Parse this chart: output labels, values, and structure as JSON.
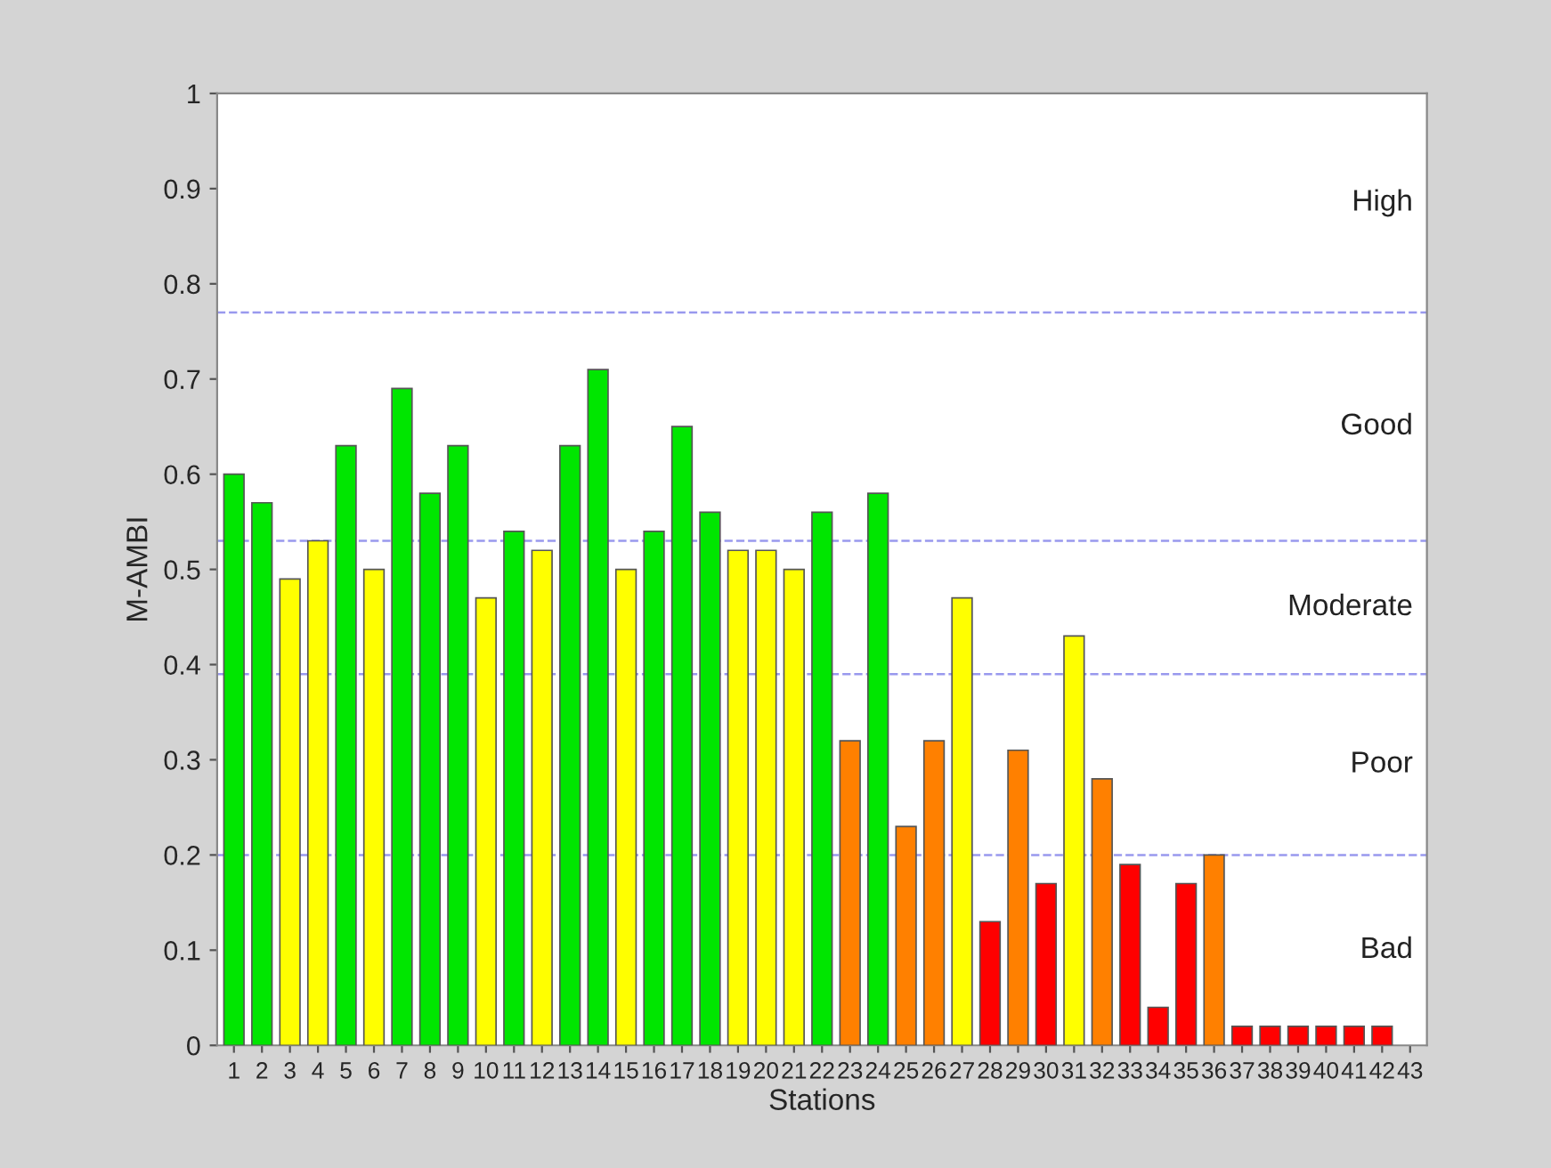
{
  "chart_data": {
    "type": "bar",
    "xlabel": "Stations",
    "ylabel": "M-AMBI",
    "categories": [
      "1",
      "2",
      "3",
      "4",
      "5",
      "6",
      "7",
      "8",
      "9",
      "10",
      "11",
      "12",
      "13",
      "14",
      "15",
      "16",
      "17",
      "18",
      "19",
      "20",
      "21",
      "22",
      "23",
      "24",
      "25",
      "26",
      "27",
      "28",
      "29",
      "30",
      "31",
      "32",
      "33",
      "34",
      "35",
      "36",
      "37",
      "38",
      "39",
      "40",
      "41",
      "42",
      "43"
    ],
    "values": [
      0.6,
      0.57,
      0.49,
      0.53,
      0.63,
      0.5,
      0.69,
      0.58,
      0.63,
      0.47,
      0.54,
      0.52,
      0.63,
      0.71,
      0.5,
      0.54,
      0.65,
      0.56,
      0.52,
      0.52,
      0.5,
      0.56,
      0.32,
      0.58,
      0.23,
      0.32,
      0.47,
      0.13,
      0.31,
      0.17,
      0.43,
      0.28,
      0.19,
      0.04,
      0.17,
      0.2,
      0.02,
      0.02,
      0.02,
      0.02,
      0.02,
      0.02,
      null
    ],
    "colors": [
      "#00e600",
      "#00e600",
      "#ffff00",
      "#ffff00",
      "#00e600",
      "#ffff00",
      "#00e600",
      "#00e600",
      "#00e600",
      "#ffff00",
      "#00e600",
      "#ffff00",
      "#00e600",
      "#00e600",
      "#ffff00",
      "#00e600",
      "#00e600",
      "#00e600",
      "#ffff00",
      "#ffff00",
      "#ffff00",
      "#00e600",
      "#ff8000",
      "#00e600",
      "#ff8000",
      "#ff8000",
      "#ffff00",
      "#ff0000",
      "#ff8000",
      "#ff0000",
      "#ffff00",
      "#ff8000",
      "#ff0000",
      "#ff0000",
      "#ff0000",
      "#ff8000",
      "#ff0000",
      "#ff0000",
      "#ff0000",
      "#ff0000",
      "#ff0000",
      "#ff0000",
      "#ff0000"
    ],
    "ylim": [
      0,
      1
    ],
    "yticks": [
      0,
      0.1,
      0.2,
      0.3,
      0.4,
      0.5,
      0.6,
      0.7,
      0.8,
      0.9,
      1
    ],
    "ref_lines": [
      {
        "axis": "y",
        "value": 0.77,
        "color": "#9999ee",
        "line_style": "dashed"
      },
      {
        "axis": "y",
        "value": 0.53,
        "color": "#9999ee",
        "line_style": "dashed"
      },
      {
        "axis": "y",
        "value": 0.39,
        "color": "#9999ee",
        "line_style": "dashed"
      },
      {
        "axis": "y",
        "value": 0.2,
        "color": "#9999ee",
        "line_style": "dashed"
      }
    ],
    "annotations": [
      "High",
      "Good",
      "Moderate",
      "Poor",
      "Bad"
    ],
    "grid": false,
    "legend": false
  }
}
